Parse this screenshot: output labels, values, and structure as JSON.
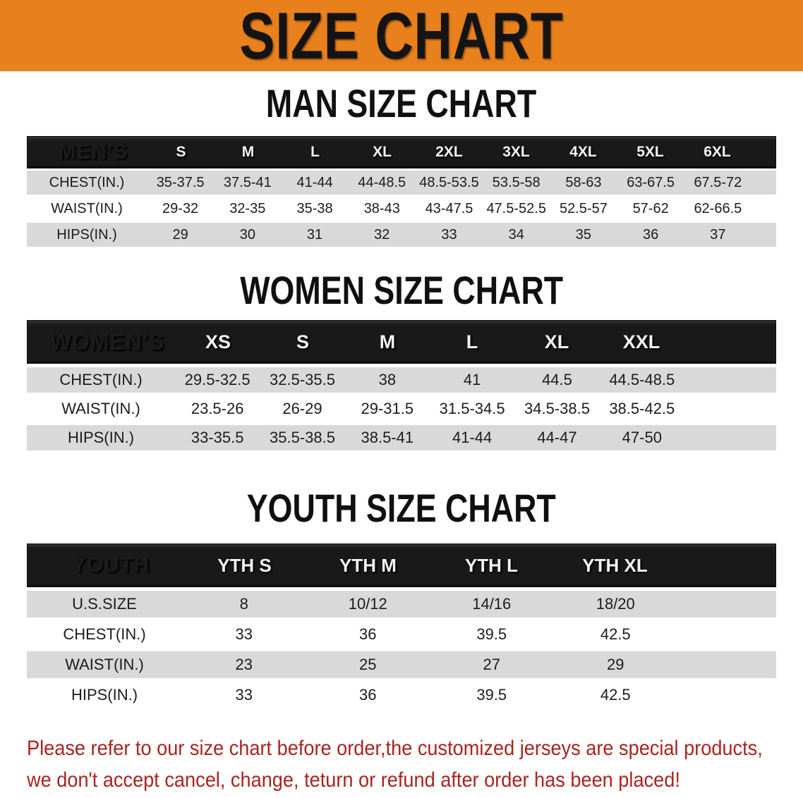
{
  "banner": {
    "title": "SIZE CHART"
  },
  "colors": {
    "banner_orange": "#E8801B",
    "header_bar_black": "#191919",
    "row_gray": "#D9D9D9",
    "row_white": "#FFFFFF",
    "footer_red": "#A8241F"
  },
  "sections": [
    {
      "heading": "MAN SIZE CHART",
      "table": {
        "header_label": "MEN'S",
        "columns": [
          "S",
          "M",
          "L",
          "XL",
          "2XL",
          "3XL",
          "4XL",
          "5XL",
          "6XL"
        ],
        "rows": [
          {
            "label": "CHEST(IN.)",
            "values": [
              "35-37.5",
              "37.5-41",
              "41-44",
              "44-48.5",
              "48.5-53.5",
              "53.5-58",
              "58-63",
              "63-67.5",
              "67.5-72"
            ]
          },
          {
            "label": "WAIST(IN.)",
            "values": [
              "29-32",
              "32-35",
              "35-38",
              "38-43",
              "43-47.5",
              "47.5-52.5",
              "52.5-57",
              "57-62",
              "62-66.5"
            ]
          },
          {
            "label": "HIPS(IN.)",
            "values": [
              "29",
              "30",
              "31",
              "32",
              "33",
              "34",
              "35",
              "36",
              "37"
            ]
          }
        ]
      }
    },
    {
      "heading": "WOMEN SIZE CHART",
      "table": {
        "header_label": "WOMEN'S",
        "columns": [
          "XS",
          "S",
          "M",
          "L",
          "XL",
          "XXL"
        ],
        "rows": [
          {
            "label": "CHEST(IN.)",
            "values": [
              "29.5-32.5",
              "32.5-35.5",
              "38",
              "41",
              "44.5",
              "44.5-48.5"
            ]
          },
          {
            "label": "WAIST(IN.)",
            "values": [
              "23.5-26",
              "26-29",
              "29-31.5",
              "31.5-34.5",
              "34.5-38.5",
              "38.5-42.5"
            ]
          },
          {
            "label": "HIPS(IN.)",
            "values": [
              "33-35.5",
              "35.5-38.5",
              "38.5-41",
              "41-44",
              "44-47",
              "47-50"
            ]
          }
        ]
      }
    },
    {
      "heading": "YOUTH SIZE CHART",
      "table": {
        "header_label": "YOUTH",
        "columns": [
          "YTH S",
          "YTH M",
          "YTH L",
          "YTH XL"
        ],
        "rows": [
          {
            "label": "U.S.SIZE",
            "values": [
              "8",
              "10/12",
              "14/16",
              "18/20"
            ]
          },
          {
            "label": "CHEST(IN.)",
            "values": [
              "33",
              "36",
              "39.5",
              "42.5"
            ]
          },
          {
            "label": "WAIST(IN.)",
            "values": [
              "23",
              "25",
              "27",
              "29"
            ]
          },
          {
            "label": "HIPS(IN.)",
            "values": [
              "33",
              "36",
              "39.5",
              "42.5"
            ]
          }
        ]
      }
    }
  ],
  "footer": {
    "line1": "Please refer to our size chart before order,the customized jerseys are special products,",
    "line2": "we don't accept cancel, change, teturn or refund after order has been placed!"
  }
}
